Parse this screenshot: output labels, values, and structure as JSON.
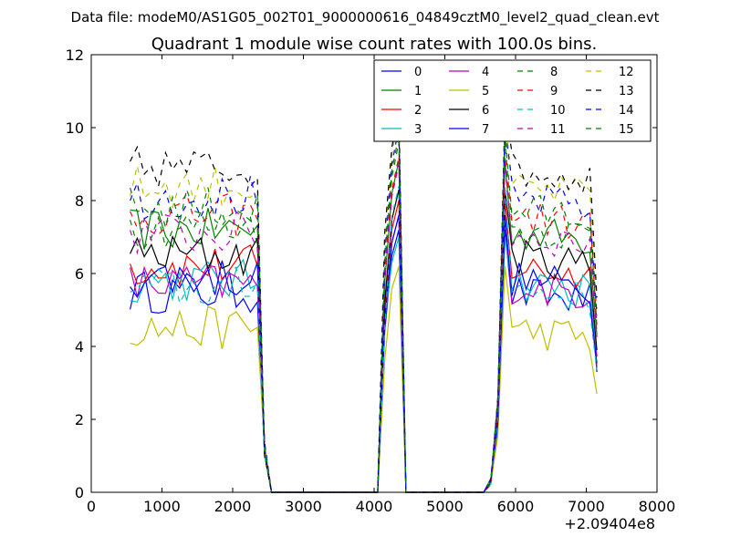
{
  "header": {
    "data_file": "Data file: modeM0/AS1G05_002T01_9000000616_04849cztM0_level2_quad_clean.evt"
  },
  "chart_data": {
    "type": "line",
    "title": "Quadrant 1 module wise count rates with 100.0s bins.",
    "xlabel": "",
    "ylabel": "",
    "x_offset_label": "+2.09404e8",
    "xlim": [
      0,
      8000
    ],
    "ylim": [
      0,
      12
    ],
    "xticks": [
      0,
      1000,
      2000,
      3000,
      4000,
      5000,
      6000,
      7000,
      8000
    ],
    "yticks": [
      0,
      2,
      4,
      6,
      8,
      10,
      12
    ],
    "xtick_labels": [
      "0",
      "1000",
      "2000",
      "3000",
      "4000",
      "5000",
      "6000",
      "7000",
      "8000"
    ],
    "ytick_labels": [
      "0",
      "2",
      "4",
      "6",
      "8",
      "10",
      "12"
    ],
    "grid": false,
    "legend_position": "top-right",
    "x": [
      550,
      650,
      750,
      850,
      950,
      1050,
      1150,
      1250,
      1350,
      1450,
      1550,
      1650,
      1750,
      1850,
      1950,
      2050,
      2150,
      2250,
      2350,
      2450,
      2550,
      2650,
      2750,
      2850,
      2950,
      3050,
      3150,
      3250,
      3350,
      3450,
      3550,
      3650,
      3750,
      3850,
      3950,
      4050,
      4150,
      4250,
      4350,
      4450,
      4550,
      4650,
      4750,
      4850,
      4950,
      5050,
      5150,
      5250,
      5350,
      5450,
      5550,
      5650,
      5750,
      5850,
      5950,
      6050,
      6150,
      6250,
      6350,
      6450,
      6550,
      6650,
      6750,
      6850,
      6950,
      7050,
      7150
    ],
    "segments": {
      "active_1": [
        0,
        18
      ],
      "active_2": [
        36,
        38
      ],
      "active_3": [
        52,
        66
      ]
    },
    "series": [
      {
        "name": "0",
        "color": "#0000ff",
        "dash": false,
        "base": 5.5,
        "peak2": 7.2
      },
      {
        "name": "1",
        "color": "#008000",
        "dash": false,
        "base": 7.2,
        "peak2": 9.1
      },
      {
        "name": "2",
        "color": "#ff0000",
        "dash": false,
        "base": 6.2,
        "peak2": 8.0
      },
      {
        "name": "3",
        "color": "#00bfbf",
        "dash": false,
        "base": 5.8,
        "peak2": 7.0
      },
      {
        "name": "4",
        "color": "#bf00bf",
        "dash": false,
        "base": 5.7,
        "peak2": 7.6
      },
      {
        "name": "5",
        "color": "#bfbf00",
        "dash": false,
        "base": 4.5,
        "peak2": 6.2
      },
      {
        "name": "6",
        "color": "#000000",
        "dash": false,
        "base": 6.5,
        "peak2": 8.3
      },
      {
        "name": "7",
        "color": "#0000ff",
        "dash": false,
        "base": 5.9,
        "peak2": 7.6
      },
      {
        "name": "8",
        "color": "#008000",
        "dash": true,
        "base": 7.3,
        "peak2": 9.6
      },
      {
        "name": "9",
        "color": "#ff0000",
        "dash": true,
        "base": 7.6,
        "peak2": 9.2
      },
      {
        "name": "10",
        "color": "#00bfbf",
        "dash": true,
        "base": 5.6,
        "peak2": 8.4
      },
      {
        "name": "11",
        "color": "#bf00bf",
        "dash": true,
        "base": 7.1,
        "peak2": 9.0
      },
      {
        "name": "12",
        "color": "#bfbf00",
        "dash": true,
        "base": 8.4,
        "peak2": 10.3
      },
      {
        "name": "13",
        "color": "#000000",
        "dash": true,
        "base": 8.9,
        "peak2": 10.5
      },
      {
        "name": "14",
        "color": "#0000ff",
        "dash": true,
        "base": 8.1,
        "peak2": 10.0
      },
      {
        "name": "15",
        "color": "#008000",
        "dash": true,
        "base": 7.8,
        "peak2": 9.8
      }
    ]
  }
}
